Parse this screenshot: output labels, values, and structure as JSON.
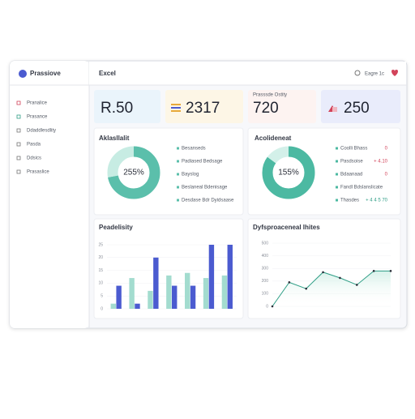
{
  "header": {
    "logo": "Prassiove",
    "title": "Excel",
    "user": "Eagre 1c"
  },
  "sidebar": [
    "Pranalice",
    "Prasance",
    "Ddaddlesdlity",
    "Pasda",
    "Ddsics",
    "Prasaslice"
  ],
  "kpis": [
    {
      "value": "R.50"
    },
    {
      "value": "2317"
    },
    {
      "label": "Prasssde Ostity",
      "value": "720"
    },
    {
      "value": "250"
    }
  ],
  "donuts": [
    {
      "title": "Aklasllalit",
      "center": "255%",
      "values": [
        72,
        28
      ],
      "colors": [
        "#5bbfab",
        "#c7ece3"
      ],
      "legend": [
        {
          "label": "Besanseds"
        },
        {
          "label": "Padiased Bedsage"
        },
        {
          "label": "Bayslog"
        },
        {
          "label": "Beslaneal Bdenisage"
        },
        {
          "label": "Desdase Bdr Dyidsaase"
        }
      ]
    },
    {
      "title": "Acolideneat",
      "center": "155%",
      "values": [
        85,
        15
      ],
      "colors": [
        "#4cb9a2",
        "#d3f0e9"
      ],
      "legend": [
        {
          "label": "Coolli Bhass",
          "value": "0"
        },
        {
          "label": "Pasdsoise",
          "value": "+ 4.10"
        },
        {
          "label": "Bdaanaad",
          "value": "0"
        },
        {
          "label": "Fandl Bdslanslicate"
        },
        {
          "label": "Thasdes",
          "value": "+ 4 4 5 70"
        }
      ]
    }
  ],
  "bar_chart": {
    "title": "Peadelisity",
    "ylim": [
      0,
      25
    ],
    "yticks": [
      0,
      5,
      10,
      15,
      20,
      25
    ],
    "series": [
      {
        "color": "#4b5bd0",
        "values": [
          9,
          2,
          20,
          9,
          9,
          25,
          25
        ]
      },
      {
        "color": "#a3dccf",
        "values": [
          2,
          12,
          7,
          13,
          14,
          12,
          13
        ]
      }
    ]
  },
  "line_chart": {
    "title": "Dyfsproaceneal lhites",
    "ylim": [
      0,
      500
    ],
    "yticks": [
      0,
      100,
      200,
      300,
      400,
      500
    ],
    "values": [
      0,
      190,
      140,
      270,
      225,
      170,
      280,
      280
    ],
    "color": "#2f9e86"
  }
}
